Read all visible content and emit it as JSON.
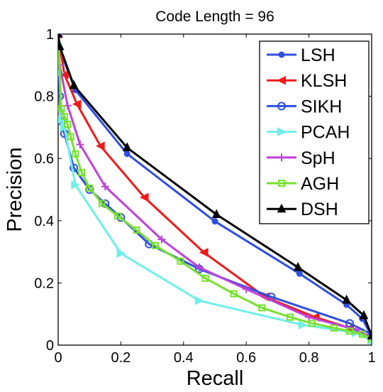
{
  "chart_data": {
    "type": "line",
    "title": "Code Length = 96",
    "xlabel": "Recall",
    "ylabel": "Precision",
    "xlim": [
      0,
      1
    ],
    "ylim": [
      0,
      1
    ],
    "xticks": [
      "0",
      "0.2",
      "0.4",
      "0.6",
      "0.8",
      "1"
    ],
    "yticks": [
      "0",
      "0.2",
      "0.4",
      "0.6",
      "0.8",
      "1"
    ],
    "grid": false,
    "legend_position": "top-right",
    "series": [
      {
        "name": "LSH",
        "color": "#2f4fe0",
        "marker": "dot",
        "x": [
          0.0,
          0.005,
          0.055,
          0.22,
          0.5,
          0.77,
          0.92,
          0.97,
          1.0
        ],
        "y": [
          1.0,
          0.95,
          0.82,
          0.615,
          0.398,
          0.23,
          0.13,
          0.085,
          0.03
        ]
      },
      {
        "name": "KLSH",
        "color": "#f01a1a",
        "marker": "triangle-left",
        "x": [
          0.0,
          0.02,
          0.06,
          0.135,
          0.275,
          0.465,
          0.66,
          0.82,
          0.93,
          1.0
        ],
        "y": [
          1.0,
          0.87,
          0.775,
          0.64,
          0.475,
          0.298,
          0.155,
          0.09,
          0.055,
          0.02
        ]
      },
      {
        "name": "SIKH",
        "color": "#2f4fe0",
        "marker": "circle",
        "x": [
          0.0,
          0.005,
          0.01,
          0.02,
          0.05,
          0.1,
          0.15,
          0.2,
          0.29,
          0.45,
          0.68,
          0.93,
          1.0
        ],
        "y": [
          1.0,
          0.8,
          0.72,
          0.68,
          0.57,
          0.5,
          0.455,
          0.41,
          0.325,
          0.245,
          0.155,
          0.07,
          0.035
        ]
      },
      {
        "name": "PCAH",
        "color": "#6ff0e8",
        "marker": "triangle-right",
        "x": [
          0.0,
          0.005,
          0.01,
          0.02,
          0.055,
          0.2,
          0.45,
          0.78,
          0.95,
          1.0
        ],
        "y": [
          0.97,
          0.875,
          0.725,
          0.7,
          0.515,
          0.295,
          0.143,
          0.065,
          0.04,
          0.015
        ]
      },
      {
        "name": "SpH",
        "color": "#c040d8",
        "marker": "plus",
        "x": [
          0.0,
          0.005,
          0.03,
          0.07,
          0.15,
          0.33,
          0.45,
          0.6,
          0.8,
          0.95,
          1.0
        ],
        "y": [
          1.0,
          0.9,
          0.77,
          0.645,
          0.51,
          0.34,
          0.25,
          0.18,
          0.09,
          0.05,
          0.025
        ]
      },
      {
        "name": "AGH",
        "color": "#77e030",
        "marker": "square",
        "x": [
          0.0,
          0.01,
          0.02,
          0.03,
          0.04,
          0.055,
          0.075,
          0.1,
          0.14,
          0.19,
          0.25,
          0.31,
          0.39,
          0.47,
          0.56,
          0.65,
          0.74,
          0.81,
          0.88,
          0.93,
          0.97,
          1.0
        ],
        "y": [
          1.0,
          0.76,
          0.735,
          0.71,
          0.67,
          0.615,
          0.555,
          0.505,
          0.455,
          0.415,
          0.37,
          0.32,
          0.27,
          0.215,
          0.165,
          0.12,
          0.09,
          0.07,
          0.055,
          0.045,
          0.035,
          0.02
        ]
      },
      {
        "name": "DSH",
        "color": "#000000",
        "marker": "triangle-up",
        "x": [
          0.0,
          0.005,
          0.05,
          0.22,
          0.505,
          0.765,
          0.92,
          0.975,
          1.0
        ],
        "y": [
          1.0,
          0.96,
          0.835,
          0.635,
          0.42,
          0.25,
          0.145,
          0.095,
          0.03
        ]
      }
    ]
  }
}
